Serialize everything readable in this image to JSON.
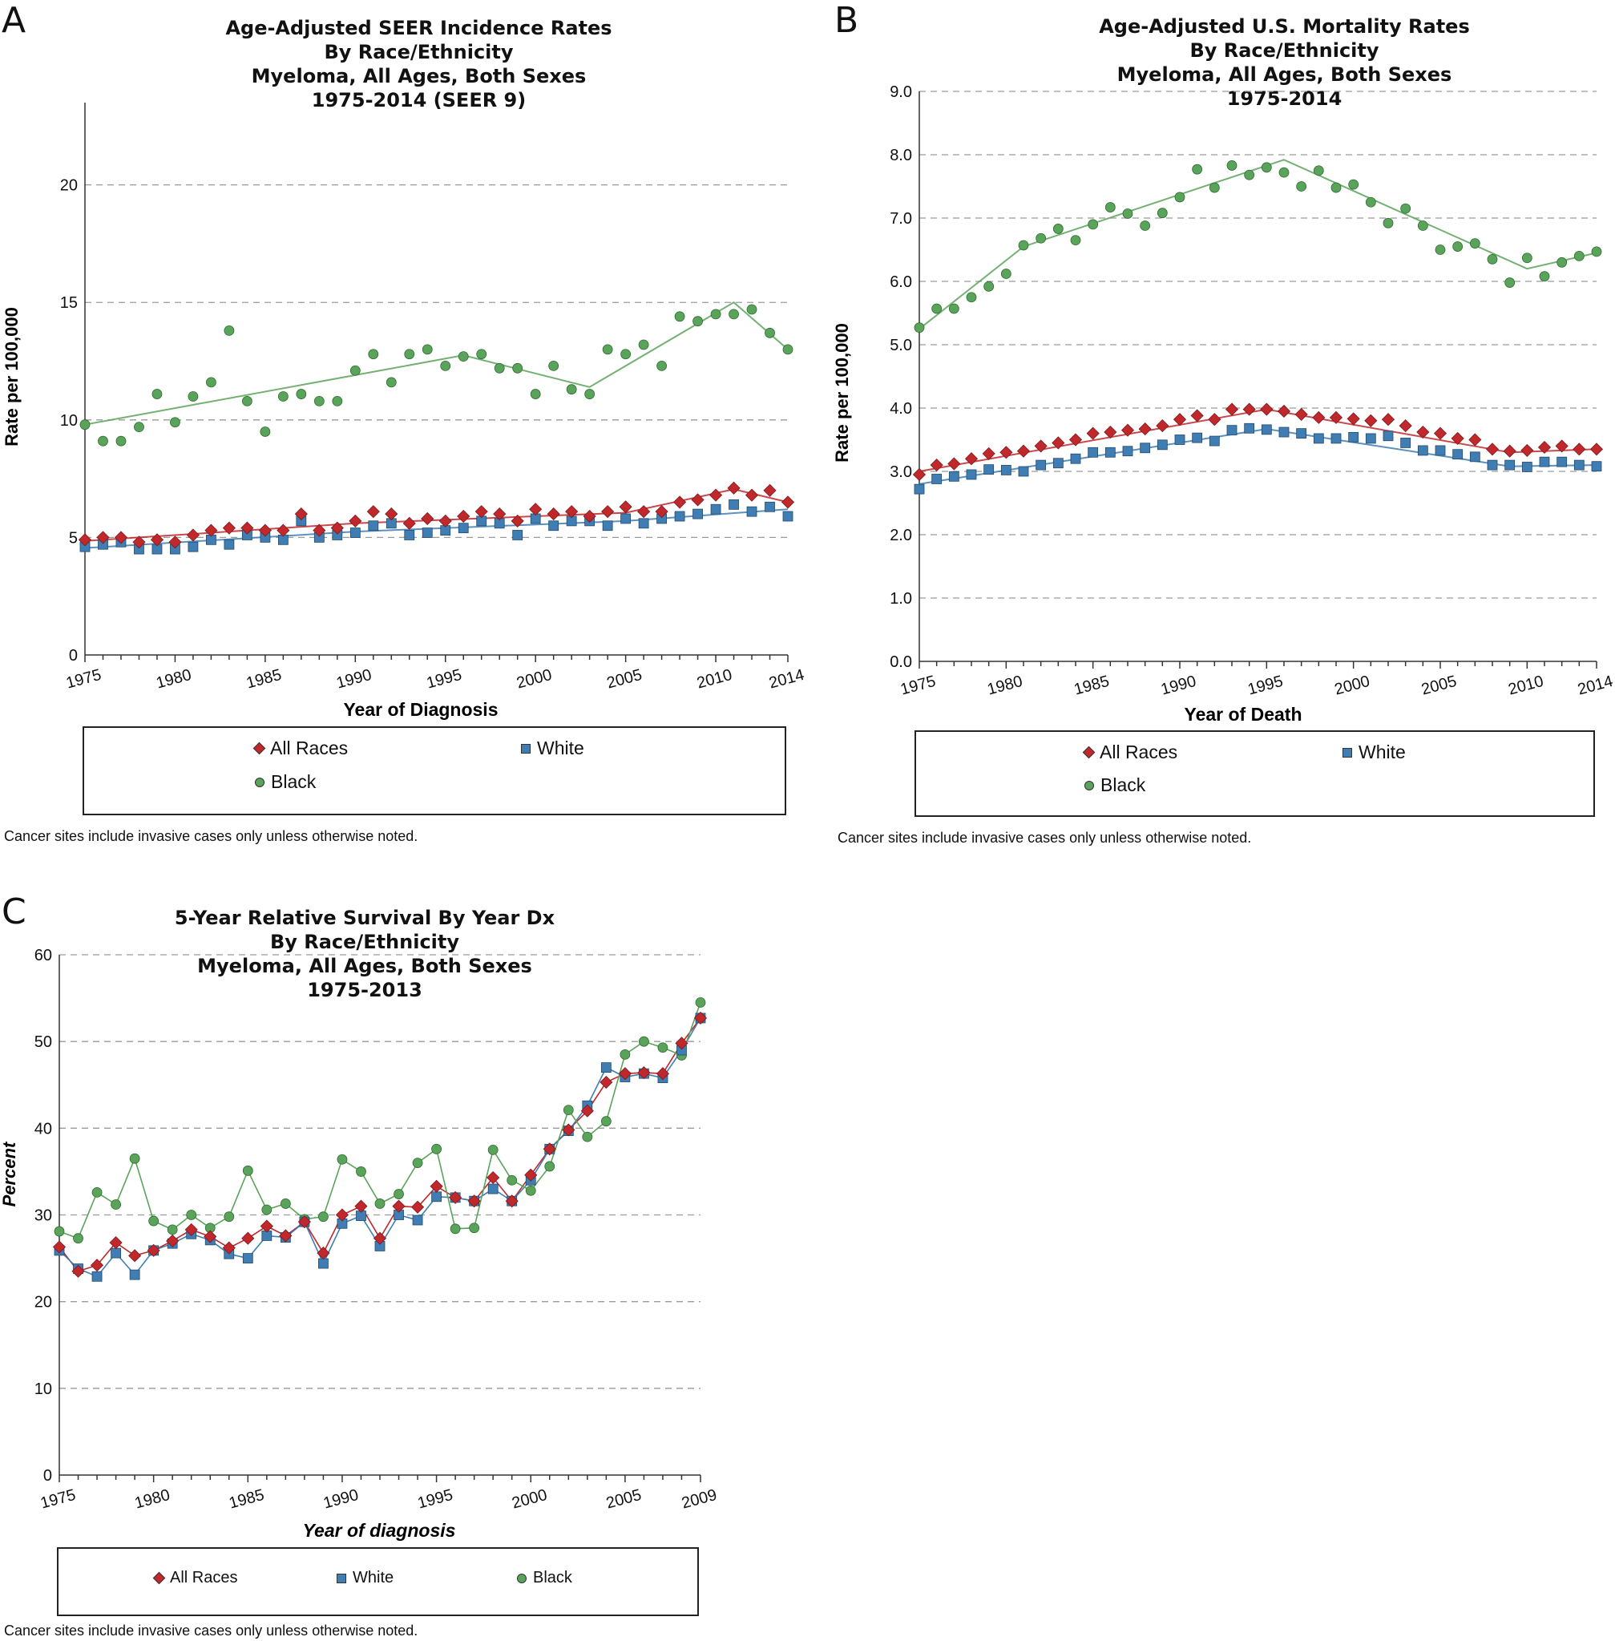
{
  "chart_data": [
    {
      "id": "A",
      "type": "scatter",
      "panel_label": "A",
      "title": [
        "Age-Adjusted SEER Incidence Rates",
        "By Race/Ethnicity",
        "Myeloma, All Ages, Both Sexes",
        "1975-2014 (SEER 9)"
      ],
      "xlabel": "Year of Diagnosis",
      "ylabel": "Rate per 100,000",
      "xlim": [
        1975,
        2014
      ],
      "ylim": [
        0,
        23.5
      ],
      "yticks": [
        0,
        5,
        10,
        15,
        20
      ],
      "ytick_labels": [
        "0",
        "5",
        "10",
        "15",
        "20"
      ],
      "xticks": [
        1975,
        1980,
        1985,
        1990,
        1995,
        2000,
        2005,
        2010,
        2014
      ],
      "x_label_italic": false,
      "trend_lines": true,
      "series": [
        {
          "name": "All Races",
          "marker": "diamond",
          "color": "#c0282c",
          "x": [
            1975,
            1976,
            1977,
            1978,
            1979,
            1980,
            1981,
            1982,
            1983,
            1984,
            1985,
            1986,
            1987,
            1988,
            1989,
            1990,
            1991,
            1992,
            1993,
            1994,
            1995,
            1996,
            1997,
            1998,
            1999,
            2000,
            2001,
            2002,
            2003,
            2004,
            2005,
            2006,
            2007,
            2008,
            2009,
            2010,
            2011,
            2012,
            2013,
            2014
          ],
          "y": [
            4.9,
            5.0,
            5.0,
            4.8,
            4.9,
            4.8,
            5.1,
            5.3,
            5.4,
            5.4,
            5.3,
            5.3,
            6.0,
            5.3,
            5.4,
            5.7,
            6.1,
            6.0,
            5.6,
            5.8,
            5.7,
            5.9,
            6.1,
            6.0,
            5.7,
            6.2,
            6.0,
            6.1,
            5.9,
            6.1,
            6.3,
            6.1,
            6.1,
            6.5,
            6.6,
            6.8,
            7.1,
            6.8,
            7.0,
            6.5
          ],
          "trend": [
            [
              1975,
              4.85
            ],
            [
              1990,
              5.6
            ],
            [
              2005,
              6.05
            ],
            [
              2011,
              7.05
            ],
            [
              2014,
              6.5
            ]
          ]
        },
        {
          "name": "White",
          "marker": "square",
          "color": "#3f7db3",
          "x": [
            1975,
            1976,
            1977,
            1978,
            1979,
            1980,
            1981,
            1982,
            1983,
            1984,
            1985,
            1986,
            1987,
            1988,
            1989,
            1990,
            1991,
            1992,
            1993,
            1994,
            1995,
            1996,
            1997,
            1998,
            1999,
            2000,
            2001,
            2002,
            2003,
            2004,
            2005,
            2006,
            2007,
            2008,
            2009,
            2010,
            2011,
            2012,
            2013,
            2014
          ],
          "y": [
            4.6,
            4.7,
            4.8,
            4.5,
            4.5,
            4.5,
            4.6,
            4.9,
            4.7,
            5.1,
            5.0,
            4.9,
            5.7,
            5.0,
            5.1,
            5.2,
            5.5,
            5.6,
            5.1,
            5.2,
            5.3,
            5.4,
            5.7,
            5.6,
            5.1,
            5.8,
            5.5,
            5.7,
            5.7,
            5.5,
            5.8,
            5.6,
            5.8,
            5.9,
            6.0,
            6.2,
            6.4,
            6.1,
            6.3,
            5.9
          ],
          "trend": [
            [
              1975,
              4.55
            ],
            [
              1990,
              5.25
            ],
            [
              2005,
              5.7
            ],
            [
              2014,
              6.2
            ]
          ]
        },
        {
          "name": "Black",
          "marker": "circle",
          "color": "#5aa35a",
          "x": [
            1975,
            1976,
            1977,
            1978,
            1979,
            1980,
            1981,
            1982,
            1983,
            1984,
            1985,
            1986,
            1987,
            1988,
            1989,
            1990,
            1991,
            1992,
            1993,
            1994,
            1995,
            1996,
            1997,
            1998,
            1999,
            2000,
            2001,
            2002,
            2003,
            2004,
            2005,
            2006,
            2007,
            2008,
            2009,
            2010,
            2011,
            2012,
            2013,
            2014
          ],
          "y": [
            9.8,
            9.1,
            9.1,
            9.7,
            11.1,
            9.9,
            11.0,
            11.6,
            13.8,
            10.8,
            9.5,
            11.0,
            11.1,
            10.8,
            10.8,
            12.1,
            12.8,
            11.6,
            12.8,
            13.0,
            12.3,
            12.7,
            12.8,
            12.2,
            12.2,
            11.1,
            12.3,
            11.3,
            11.1,
            13.0,
            12.8,
            13.2,
            12.3,
            14.4,
            14.2,
            14.5,
            14.5,
            14.7,
            13.7,
            13.0
          ],
          "trend": [
            [
              1975,
              9.8
            ],
            [
              1996,
              12.75
            ],
            [
              2003,
              11.4
            ],
            [
              2011,
              15.0
            ],
            [
              2014,
              13.0
            ]
          ]
        }
      ],
      "legend": [
        "All Races",
        "White",
        "Black"
      ],
      "footnote": "Cancer sites include invasive cases only unless otherwise noted."
    },
    {
      "id": "B",
      "type": "scatter",
      "panel_label": "B",
      "title": [
        "Age-Adjusted U.S. Mortality Rates",
        "By Race/Ethnicity",
        "Myeloma, All Ages, Both Sexes",
        "1975-2014"
      ],
      "xlabel": "Year of Death",
      "ylabel": "Rate per 100,000",
      "xlim": [
        1975,
        2014
      ],
      "ylim": [
        0,
        9
      ],
      "yticks": [
        0,
        1,
        2,
        3,
        4,
        5,
        6,
        7,
        8,
        9
      ],
      "ytick_labels": [
        "0.0",
        "1.0",
        "2.0",
        "3.0",
        "4.0",
        "5.0",
        "6.0",
        "7.0",
        "8.0",
        "9.0"
      ],
      "xticks": [
        1975,
        1980,
        1985,
        1990,
        1995,
        2000,
        2005,
        2010,
        2014
      ],
      "x_label_italic": false,
      "trend_lines": true,
      "series": [
        {
          "name": "All Races",
          "marker": "diamond",
          "color": "#c0282c",
          "x": [
            1975,
            1976,
            1977,
            1978,
            1979,
            1980,
            1981,
            1982,
            1983,
            1984,
            1985,
            1986,
            1987,
            1988,
            1989,
            1990,
            1991,
            1992,
            1993,
            1994,
            1995,
            1996,
            1997,
            1998,
            1999,
            2000,
            2001,
            2002,
            2003,
            2004,
            2005,
            2006,
            2007,
            2008,
            2009,
            2010,
            2011,
            2012,
            2013,
            2014
          ],
          "y": [
            2.95,
            3.1,
            3.12,
            3.2,
            3.28,
            3.3,
            3.32,
            3.4,
            3.45,
            3.5,
            3.6,
            3.62,
            3.65,
            3.67,
            3.72,
            3.82,
            3.88,
            3.82,
            3.98,
            3.98,
            3.98,
            3.95,
            3.9,
            3.85,
            3.85,
            3.83,
            3.8,
            3.82,
            3.72,
            3.62,
            3.6,
            3.52,
            3.5,
            3.35,
            3.32,
            3.33,
            3.38,
            3.4,
            3.35,
            3.35
          ],
          "trend": [
            [
              1975,
              3.0
            ],
            [
              1995,
              3.98
            ],
            [
              2009,
              3.3
            ],
            [
              2014,
              3.35
            ]
          ]
        },
        {
          "name": "White",
          "marker": "square",
          "color": "#3f7db3",
          "x": [
            1975,
            1976,
            1977,
            1978,
            1979,
            1980,
            1981,
            1982,
            1983,
            1984,
            1985,
            1986,
            1987,
            1988,
            1989,
            1990,
            1991,
            1992,
            1993,
            1994,
            1995,
            1996,
            1997,
            1998,
            1999,
            2000,
            2001,
            2002,
            2003,
            2004,
            2005,
            2006,
            2007,
            2008,
            2009,
            2010,
            2011,
            2012,
            2013,
            2014
          ],
          "y": [
            2.72,
            2.88,
            2.92,
            2.95,
            3.03,
            3.02,
            3.0,
            3.1,
            3.13,
            3.2,
            3.3,
            3.3,
            3.32,
            3.37,
            3.42,
            3.5,
            3.53,
            3.48,
            3.65,
            3.68,
            3.66,
            3.62,
            3.6,
            3.52,
            3.52,
            3.54,
            3.52,
            3.56,
            3.45,
            3.33,
            3.33,
            3.27,
            3.23,
            3.1,
            3.1,
            3.07,
            3.15,
            3.15,
            3.1,
            3.08
          ],
          "trend": [
            [
              1975,
              2.8
            ],
            [
              1995,
              3.67
            ],
            [
              2009,
              3.08
            ],
            [
              2014,
              3.1
            ]
          ]
        },
        {
          "name": "Black",
          "marker": "circle",
          "color": "#5aa35a",
          "x": [
            1975,
            1976,
            1977,
            1978,
            1979,
            1980,
            1981,
            1982,
            1983,
            1984,
            1985,
            1986,
            1987,
            1988,
            1989,
            1990,
            1991,
            1992,
            1993,
            1994,
            1995,
            1996,
            1997,
            1998,
            1999,
            2000,
            2001,
            2002,
            2003,
            2004,
            2005,
            2006,
            2007,
            2008,
            2009,
            2010,
            2011,
            2012,
            2013,
            2014
          ],
          "y": [
            5.27,
            5.57,
            5.57,
            5.75,
            5.92,
            6.12,
            6.57,
            6.68,
            6.83,
            6.65,
            6.9,
            7.17,
            7.07,
            6.88,
            7.08,
            7.33,
            7.77,
            7.48,
            7.83,
            7.68,
            7.8,
            7.72,
            7.5,
            7.75,
            7.48,
            7.53,
            7.25,
            6.92,
            7.15,
            6.88,
            6.5,
            6.55,
            6.6,
            6.35,
            5.98,
            6.37,
            6.08,
            6.3,
            6.4,
            6.47
          ],
          "trend": [
            [
              1975,
              5.25
            ],
            [
              1981,
              6.55
            ],
            [
              1996,
              7.92
            ],
            [
              2010,
              6.2
            ],
            [
              2014,
              6.45
            ]
          ]
        }
      ],
      "legend": [
        "All Races",
        "White",
        "Black"
      ],
      "footnote": "Cancer sites include invasive cases only unless otherwise noted."
    },
    {
      "id": "C",
      "type": "line",
      "panel_label": "C",
      "title": [
        "5-Year Relative Survival By Year Dx",
        "By Race/Ethnicity",
        "Myeloma, All Ages, Both Sexes",
        "1975-2013"
      ],
      "xlabel": "Year of diagnosis",
      "ylabel": "Percent",
      "xlim": [
        1975,
        2009
      ],
      "ylim": [
        0,
        60
      ],
      "yticks": [
        0,
        10,
        20,
        30,
        40,
        50,
        60
      ],
      "ytick_labels": [
        "0",
        "10",
        "20",
        "30",
        "40",
        "50",
        "60"
      ],
      "xticks": [
        1975,
        1980,
        1985,
        1990,
        1995,
        2000,
        2005,
        2009
      ],
      "x_label_italic": true,
      "trend_lines": false,
      "series": [
        {
          "name": "All Races",
          "marker": "diamond",
          "color": "#c0282c",
          "x": [
            1975,
            1976,
            1977,
            1978,
            1979,
            1980,
            1981,
            1982,
            1983,
            1984,
            1985,
            1986,
            1987,
            1988,
            1989,
            1990,
            1991,
            1992,
            1993,
            1994,
            1995,
            1996,
            1997,
            1998,
            1999,
            2000,
            2001,
            2002,
            2003,
            2004,
            2005,
            2006,
            2007,
            2008,
            2009
          ],
          "y": [
            26.3,
            23.5,
            24.2,
            26.8,
            25.3,
            25.9,
            27.0,
            28.3,
            27.5,
            26.2,
            27.3,
            28.7,
            27.6,
            29.2,
            25.6,
            30.0,
            31.0,
            27.3,
            31.0,
            30.9,
            33.3,
            32.0,
            31.6,
            34.3,
            31.6,
            34.6,
            37.6,
            39.8,
            42.0,
            45.3,
            46.3,
            46.4,
            46.3,
            49.8,
            52.7
          ]
        },
        {
          "name": "White",
          "marker": "square",
          "color": "#3f7db3",
          "x": [
            1975,
            1976,
            1977,
            1978,
            1979,
            1980,
            1981,
            1982,
            1983,
            1984,
            1985,
            1986,
            1987,
            1988,
            1989,
            1990,
            1991,
            1992,
            1993,
            1994,
            1995,
            1996,
            1997,
            1998,
            1999,
            2000,
            2001,
            2002,
            2003,
            2004,
            2005,
            2006,
            2007,
            2008,
            2009
          ],
          "y": [
            25.9,
            23.8,
            22.9,
            25.6,
            23.1,
            25.9,
            26.7,
            27.8,
            27.1,
            25.5,
            25.0,
            27.6,
            27.4,
            29.2,
            24.4,
            29.0,
            29.9,
            26.4,
            30.0,
            29.4,
            32.1,
            32.0,
            31.6,
            33.0,
            31.6,
            34.0,
            37.6,
            39.7,
            42.6,
            47.0,
            45.9,
            46.3,
            45.8,
            49.0,
            52.7
          ]
        },
        {
          "name": "Black",
          "marker": "circle",
          "color": "#5aa35a",
          "x": [
            1975,
            1976,
            1977,
            1978,
            1979,
            1980,
            1981,
            1982,
            1983,
            1984,
            1985,
            1986,
            1987,
            1988,
            1989,
            1990,
            1991,
            1992,
            1993,
            1994,
            1995,
            1996,
            1997,
            1998,
            1999,
            2000,
            2001,
            2002,
            2003,
            2004,
            2005,
            2006,
            2007,
            2008,
            2009
          ],
          "y": [
            28.1,
            27.3,
            32.6,
            31.2,
            36.5,
            29.3,
            28.3,
            30.0,
            28.5,
            29.8,
            35.1,
            30.6,
            31.3,
            29.5,
            29.8,
            36.4,
            35.0,
            31.3,
            32.4,
            36.0,
            37.6,
            28.4,
            28.5,
            37.5,
            34.0,
            32.8,
            35.6,
            42.1,
            39.0,
            40.8,
            48.5,
            50.0,
            49.3,
            48.4,
            54.5
          ]
        }
      ],
      "legend": [
        "All Races",
        "White",
        "Black"
      ],
      "footnote": "Cancer sites include invasive cases only unless otherwise noted."
    }
  ]
}
